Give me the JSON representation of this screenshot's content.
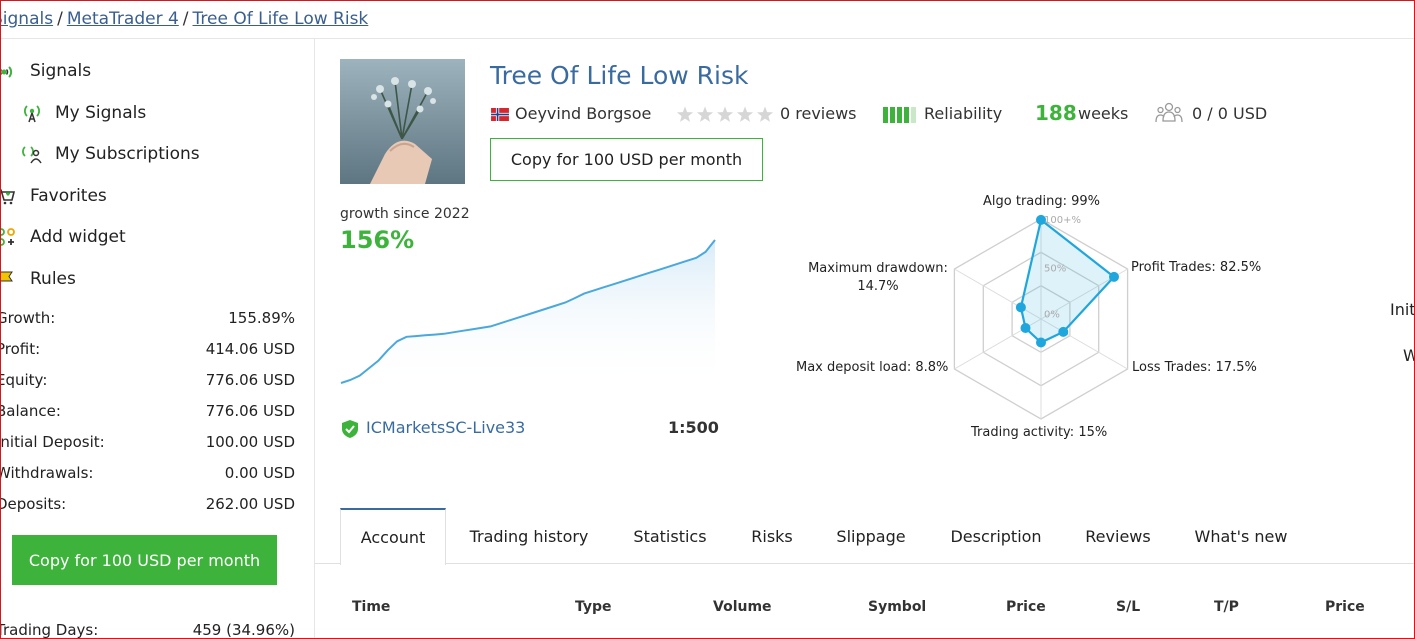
{
  "breadcrumb": {
    "items": [
      "Signals",
      "MetaTrader 4",
      "Tree Of Life Low Risk"
    ],
    "separator": "/"
  },
  "sidebar": {
    "menu": [
      {
        "label": "Signals",
        "icon": "signal-icon"
      },
      {
        "label": "My Signals",
        "icon": "broadcast-icon"
      },
      {
        "label": "My Subscriptions",
        "icon": "subscription-icon"
      },
      {
        "label": "Favorites",
        "icon": "heart-cart-icon"
      },
      {
        "label": "Add widget",
        "icon": "widget-icon"
      },
      {
        "label": "Rules",
        "icon": "flag-icon"
      }
    ],
    "stats": [
      {
        "key": "Growth:",
        "value": "155.89%"
      },
      {
        "key": "Profit:",
        "value": "414.06 USD"
      },
      {
        "key": "Equity:",
        "value": "776.06 USD"
      },
      {
        "key": "Balance:",
        "value": "776.06 USD"
      },
      {
        "key": "Initial Deposit:",
        "value": "100.00 USD"
      },
      {
        "key": "Withdrawals:",
        "value": "0.00 USD"
      },
      {
        "key": "Deposits:",
        "value": "262.00 USD"
      }
    ],
    "copy_button": "Copy for 100 USD per month",
    "trading_days": {
      "key": "Trading Days:",
      "value": "459 (34.96%)"
    }
  },
  "signal": {
    "title": "Tree Of Life Low Risk",
    "author": "Oeyvind Borgsoe",
    "reviews": "0 reviews",
    "rating": 0,
    "reliability_label": "Reliability",
    "weeks_value": "188",
    "weeks_label": "weeks",
    "subscribers": "0 / 0 USD",
    "copy_button": "Copy for 100 USD per month",
    "growth_label": "growth since 2022",
    "growth_value": "156%",
    "broker": "ICMarketsSC-Live33",
    "leverage": "1:500",
    "colors": {
      "accent": "#3a6ba0",
      "green": "#3db33b",
      "radar": "#1fa6dc"
    }
  },
  "chart_data": [
    {
      "type": "area",
      "x": [
        0,
        1,
        2,
        3,
        4,
        5,
        6,
        7,
        8,
        9,
        10,
        11,
        12,
        13,
        14,
        15,
        16,
        17,
        18,
        19,
        20,
        21,
        22,
        23,
        24,
        25,
        26,
        27,
        28,
        29,
        30,
        31,
        32,
        33,
        34,
        35,
        36,
        37,
        38,
        39,
        40
      ],
      "values": [
        0,
        2,
        5,
        10,
        15,
        22,
        28,
        31,
        31.5,
        32,
        32.5,
        33,
        34,
        35,
        36,
        37,
        38,
        40,
        42,
        44,
        46,
        48,
        50,
        52,
        54,
        57,
        60,
        62,
        64,
        66,
        68,
        70,
        72,
        74,
        76,
        78,
        80,
        82,
        84,
        88,
        96
      ],
      "xlabel": "",
      "ylabel": "",
      "ylim": [
        0,
        100
      ]
    },
    {
      "type": "radar",
      "categories": [
        "Algo trading: 99%",
        "Profit Trades: 82.5%",
        "Loss Trades: 17.5%",
        "Trading activity: 15%",
        "Max deposit load: 8.8%",
        "Maximum drawdown: 14.7%"
      ],
      "values": [
        99,
        82.5,
        17.5,
        15,
        8.8,
        14.7
      ],
      "tick_labels": [
        "100+%",
        "50%",
        "0%"
      ],
      "ylim": [
        0,
        100
      ]
    }
  ],
  "tabs": [
    {
      "label": "Account",
      "active": true
    },
    {
      "label": "Trading history"
    },
    {
      "label": "Statistics"
    },
    {
      "label": "Risks"
    },
    {
      "label": "Slippage"
    },
    {
      "label": "Description"
    },
    {
      "label": "Reviews"
    },
    {
      "label": "What's new"
    }
  ],
  "table": {
    "columns": [
      "Time",
      "Type",
      "Volume",
      "Symbol",
      "Price",
      "S/L",
      "T/P",
      "Price"
    ]
  },
  "edge_fragments": [
    "Init",
    "W"
  ]
}
